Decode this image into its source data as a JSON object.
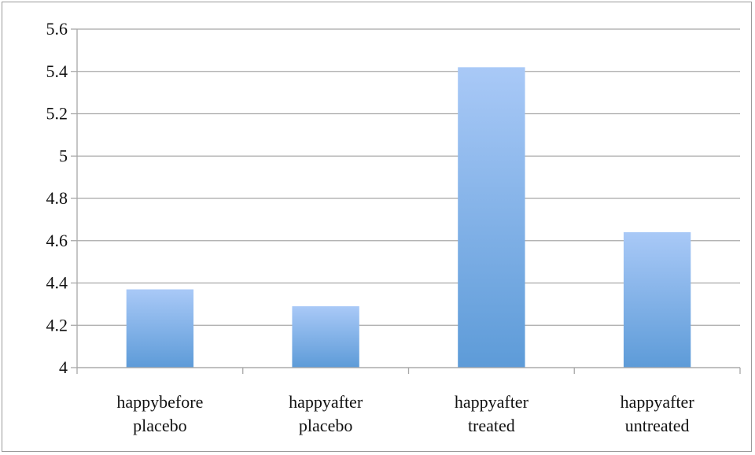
{
  "chart_data": {
    "type": "bar",
    "title": "",
    "xlabel": "",
    "ylabel": "",
    "ylim": [
      4,
      5.6
    ],
    "yticks": [
      "4",
      "4.2",
      "4.4",
      "4.6",
      "4.8",
      "5",
      "5.2",
      "5.4",
      "5.6"
    ],
    "ytick_values": [
      4,
      4.2,
      4.4,
      4.6,
      4.8,
      5,
      5.2,
      5.4,
      5.6
    ],
    "categories": [
      [
        "happybefore",
        "placebo"
      ],
      [
        "happyafter",
        "placebo"
      ],
      [
        "happyafter",
        "treated"
      ],
      [
        "happyafter",
        "untreated"
      ]
    ],
    "values": [
      4.37,
      4.29,
      5.42,
      4.64
    ],
    "grid": true,
    "legend": "none",
    "colors": {
      "bar_top": "#a9c9f7",
      "bar_bottom": "#5d9bd8",
      "grid": "#a8a8a8",
      "axis": "#a8a8a8"
    }
  }
}
